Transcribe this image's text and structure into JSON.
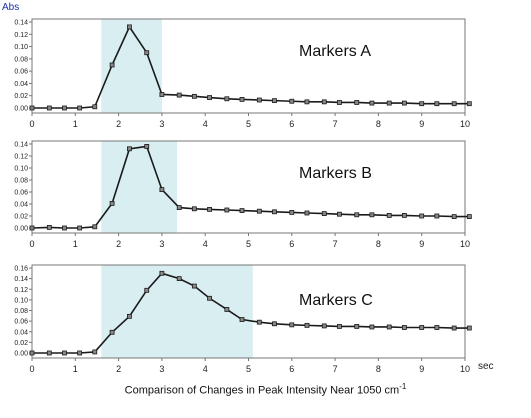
{
  "figure": {
    "y_unit_label": "Abs",
    "x_unit_label": "sec",
    "caption": "Comparison of Changes in Peak Intensity Near 1050 cm",
    "caption_superscript": "-1"
  },
  "colors": {
    "highlight_band": "#d9eef1",
    "line": "#1a1a1a",
    "marker_fill": "#888888",
    "axis": "#777777",
    "y_unit_text": "#1a2ea8"
  },
  "chart_data": [
    {
      "type": "line",
      "title": "Markers A",
      "xlim": [
        0,
        10
      ],
      "ylim": [
        0,
        0.14
      ],
      "x_ticks": [
        0,
        1,
        2,
        3,
        4,
        5,
        6,
        7,
        8,
        9,
        10
      ],
      "y_ticks": [
        0.0,
        0.02,
        0.04,
        0.06,
        0.08,
        0.1,
        0.12,
        0.14
      ],
      "y_tick_labels": [
        "0.00",
        "0.02",
        "0.04",
        "0.06",
        "0.08",
        "0.10",
        "0.12",
        "0.14"
      ],
      "highlight": [
        1.6,
        3.0
      ],
      "x": [
        0,
        0.4,
        0.75,
        1.1,
        1.45,
        1.85,
        2.25,
        2.65,
        3.0,
        3.4,
        3.75,
        4.1,
        4.5,
        4.85,
        5.25,
        5.6,
        6.0,
        6.35,
        6.75,
        7.1,
        7.5,
        7.85,
        8.25,
        8.6,
        9.0,
        9.35,
        9.75,
        10.1
      ],
      "y": [
        0.0,
        0.0,
        0.0,
        0.0,
        0.002,
        0.07,
        0.132,
        0.09,
        0.022,
        0.021,
        0.019,
        0.017,
        0.015,
        0.014,
        0.013,
        0.012,
        0.011,
        0.01,
        0.01,
        0.009,
        0.009,
        0.008,
        0.008,
        0.008,
        0.007,
        0.007,
        0.007,
        0.007
      ]
    },
    {
      "type": "line",
      "title": "Markers B",
      "xlim": [
        0,
        10
      ],
      "ylim": [
        0,
        0.14
      ],
      "x_ticks": [
        0,
        1,
        2,
        3,
        4,
        5,
        6,
        7,
        8,
        9,
        10
      ],
      "y_ticks": [
        0.0,
        0.02,
        0.04,
        0.06,
        0.08,
        0.1,
        0.12,
        0.14
      ],
      "y_tick_labels": [
        "0.00",
        "0.02",
        "0.04",
        "0.06",
        "0.08",
        "0.10",
        "0.12",
        "0.14"
      ],
      "highlight": [
        1.6,
        3.35
      ],
      "x": [
        0,
        0.4,
        0.75,
        1.1,
        1.45,
        1.85,
        2.25,
        2.65,
        3.0,
        3.4,
        3.75,
        4.1,
        4.5,
        4.85,
        5.25,
        5.6,
        6.0,
        6.35,
        6.75,
        7.1,
        7.5,
        7.85,
        8.25,
        8.6,
        9.0,
        9.35,
        9.75,
        10.1
      ],
      "y": [
        0.0,
        0.001,
        0.0,
        0.0,
        0.002,
        0.041,
        0.132,
        0.136,
        0.064,
        0.034,
        0.032,
        0.031,
        0.03,
        0.029,
        0.028,
        0.027,
        0.026,
        0.025,
        0.024,
        0.023,
        0.022,
        0.022,
        0.021,
        0.021,
        0.02,
        0.02,
        0.019,
        0.019
      ]
    },
    {
      "type": "line",
      "title": "Markers C",
      "xlim": [
        0,
        10
      ],
      "ylim": [
        0,
        0.16
      ],
      "x_ticks": [
        0,
        1,
        2,
        3,
        4,
        5,
        6,
        7,
        8,
        9,
        10
      ],
      "y_ticks": [
        0.0,
        0.02,
        0.04,
        0.06,
        0.08,
        0.1,
        0.12,
        0.14,
        0.16
      ],
      "y_tick_labels": [
        "0.00",
        "0.02",
        "0.04",
        "0.06",
        "0.08",
        "0.10",
        "0.12",
        "0.14",
        "0.16"
      ],
      "highlight": [
        1.6,
        5.1
      ],
      "x": [
        0,
        0.4,
        0.75,
        1.1,
        1.45,
        1.85,
        2.25,
        2.65,
        3.0,
        3.4,
        3.75,
        4.1,
        4.5,
        4.85,
        5.25,
        5.6,
        6.0,
        6.35,
        6.75,
        7.1,
        7.5,
        7.85,
        8.25,
        8.6,
        9.0,
        9.35,
        9.75,
        10.1
      ],
      "y": [
        0.0,
        0.0,
        0.0,
        0.0,
        0.002,
        0.039,
        0.069,
        0.118,
        0.15,
        0.14,
        0.126,
        0.103,
        0.082,
        0.063,
        0.058,
        0.055,
        0.053,
        0.052,
        0.051,
        0.05,
        0.05,
        0.049,
        0.049,
        0.048,
        0.048,
        0.048,
        0.047,
        0.047
      ]
    }
  ]
}
